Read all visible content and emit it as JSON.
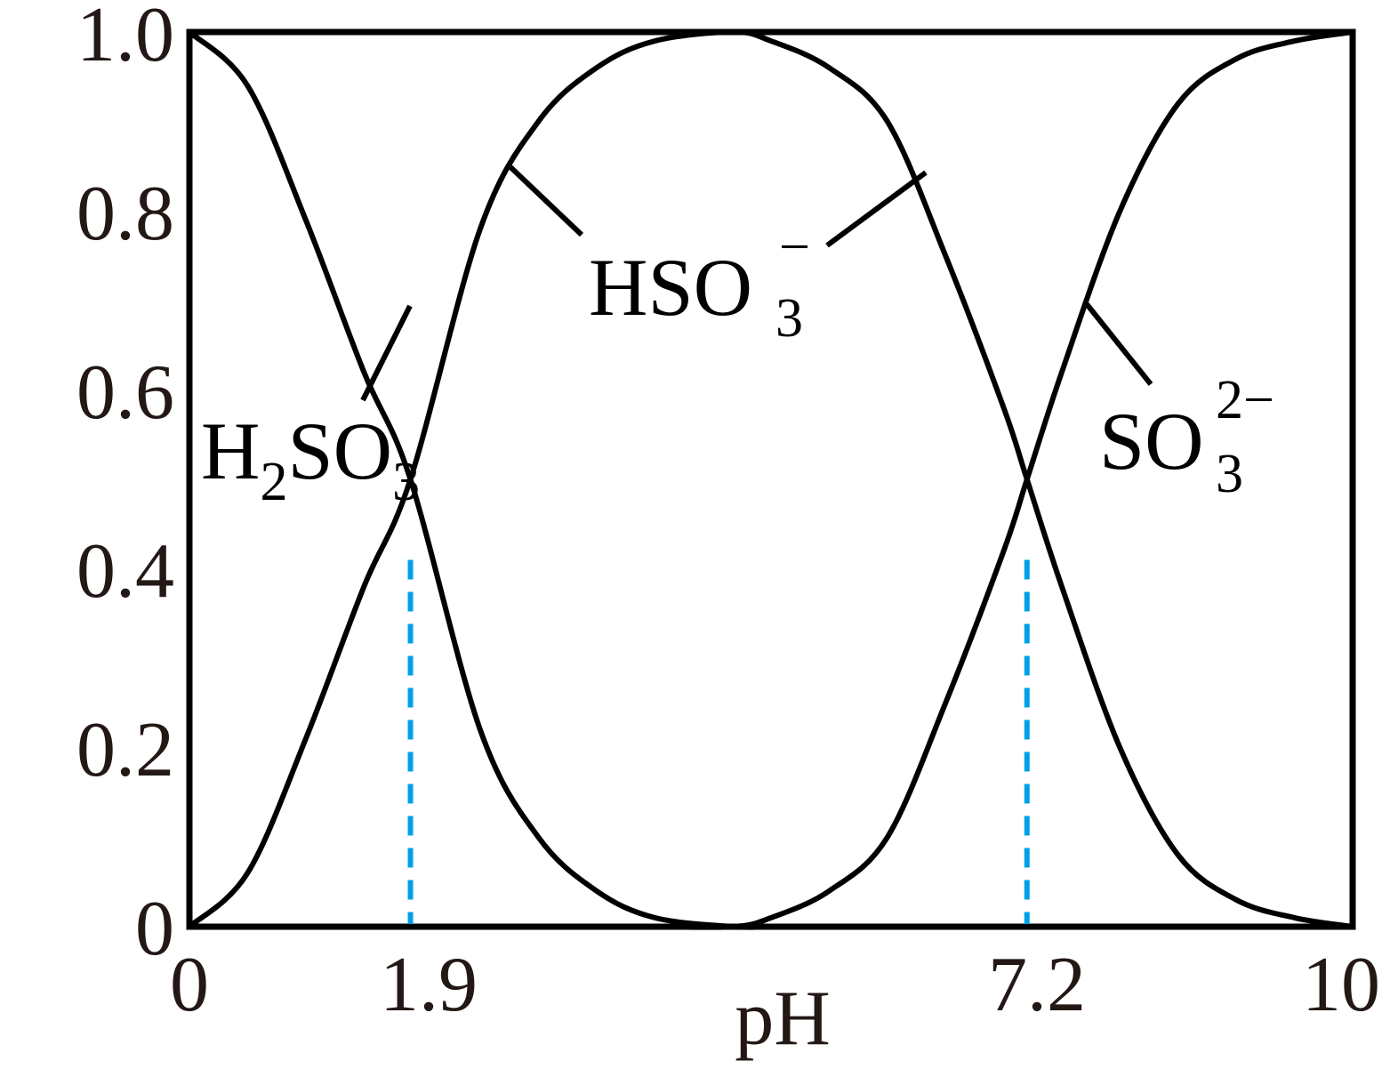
{
  "chart_data": {
    "type": "line",
    "title": "",
    "xlabel": "pH",
    "ylabel": "",
    "xlim": [
      0,
      10
    ],
    "ylim": [
      0,
      1.0
    ],
    "x_ticks": [
      "0",
      "1.9",
      "7.2",
      "10"
    ],
    "y_ticks": [
      "0",
      "0.2",
      "0.4",
      "0.6",
      "0.8",
      "1.0"
    ],
    "grid": false,
    "series": [
      {
        "x": [
          0,
          0.5,
          1.0,
          1.5,
          1.9,
          2.5,
          3.0,
          3.5,
          4.0,
          4.68,
          5.0,
          5.5,
          6.0,
          6.5,
          7.0,
          7.2,
          7.5,
          8.0,
          8.5,
          9.0,
          9.5,
          10
        ],
        "values": [
          1.0,
          0.94,
          0.79,
          0.62,
          0.5,
          0.22,
          0.1,
          0.04,
          0.01,
          0.0,
          0.0,
          0.0,
          0.0,
          0.0,
          0.0,
          0.0,
          0.0,
          0.0,
          0.0,
          0.0,
          0.0,
          0.0
        ]
      },
      {
        "x": [
          0,
          0.5,
          1.0,
          1.5,
          1.9,
          2.5,
          3.0,
          3.5,
          4.0,
          4.68,
          5.0,
          5.5,
          6.0,
          6.5,
          7.0,
          7.2,
          7.5,
          8.0,
          8.5,
          9.0,
          9.5,
          10
        ],
        "values": [
          0.0,
          0.06,
          0.21,
          0.38,
          0.5,
          0.78,
          0.9,
          0.96,
          0.99,
          1.0,
          0.99,
          0.96,
          0.9,
          0.75,
          0.58,
          0.5,
          0.38,
          0.2,
          0.08,
          0.03,
          0.01,
          0.0
        ]
      },
      {
        "x": [
          0,
          0.5,
          1.0,
          1.5,
          1.9,
          2.5,
          3.0,
          3.5,
          4.0,
          4.68,
          5.0,
          5.5,
          6.0,
          6.5,
          7.0,
          7.2,
          7.5,
          8.0,
          8.5,
          9.0,
          9.5,
          10
        ],
        "values": [
          0.0,
          0.0,
          0.0,
          0.0,
          0.0,
          0.0,
          0.0,
          0.0,
          0.0,
          0.0,
          0.01,
          0.04,
          0.1,
          0.25,
          0.42,
          0.5,
          0.62,
          0.8,
          0.92,
          0.97,
          0.99,
          1.0
        ]
      }
    ],
    "reference_lines": [
      {
        "x": 1.9,
        "color": "#00a0e9",
        "style": "dashed"
      },
      {
        "x": 7.2,
        "color": "#00a0e9",
        "style": "dashed"
      }
    ],
    "annotations": [
      {
        "text": "H",
        "sub": "2",
        "text2": "SO",
        "sub2": "3",
        "sup": ""
      },
      {
        "text": "HSO",
        "sub": "3",
        "sup": "−"
      },
      {
        "text": "SO",
        "sub": "3",
        "sup": "2−"
      }
    ],
    "line_color": "#000000",
    "reference_color": "#00a0e9"
  }
}
